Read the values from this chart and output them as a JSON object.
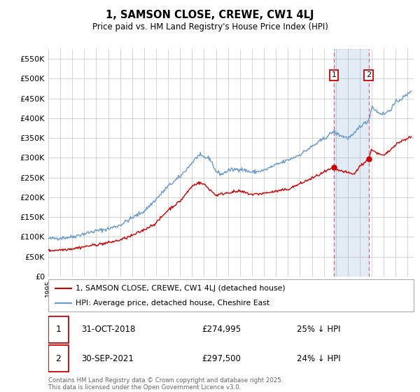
{
  "title1": "1, SAMSON CLOSE, CREWE, CW1 4LJ",
  "title2": "Price paid vs. HM Land Registry's House Price Index (HPI)",
  "legend_label_red": "1, SAMSON CLOSE, CREWE, CW1 4LJ (detached house)",
  "legend_label_blue": "HPI: Average price, detached house, Cheshire East",
  "marker1_date": "31-OCT-2018",
  "marker1_price": 274995,
  "marker1_pct": "25% ↓ HPI",
  "marker1_year": 2018.83,
  "marker2_date": "30-SEP-2021",
  "marker2_price": 297500,
  "marker2_pct": "24% ↓ HPI",
  "marker2_year": 2021.75,
  "footer": "Contains HM Land Registry data © Crown copyright and database right 2025.\nThis data is licensed under the Open Government Licence v3.0.",
  "ylim_min": 0,
  "ylim_max": 575000,
  "xlim_min": 1995,
  "xlim_max": 2025.5,
  "background_color": "#ffffff",
  "grid_color": "#cccccc",
  "red_color": "#cc0000",
  "blue_color": "#6699cc",
  "blue_fill": "#ddeeff",
  "vline_color": "#dd4466"
}
